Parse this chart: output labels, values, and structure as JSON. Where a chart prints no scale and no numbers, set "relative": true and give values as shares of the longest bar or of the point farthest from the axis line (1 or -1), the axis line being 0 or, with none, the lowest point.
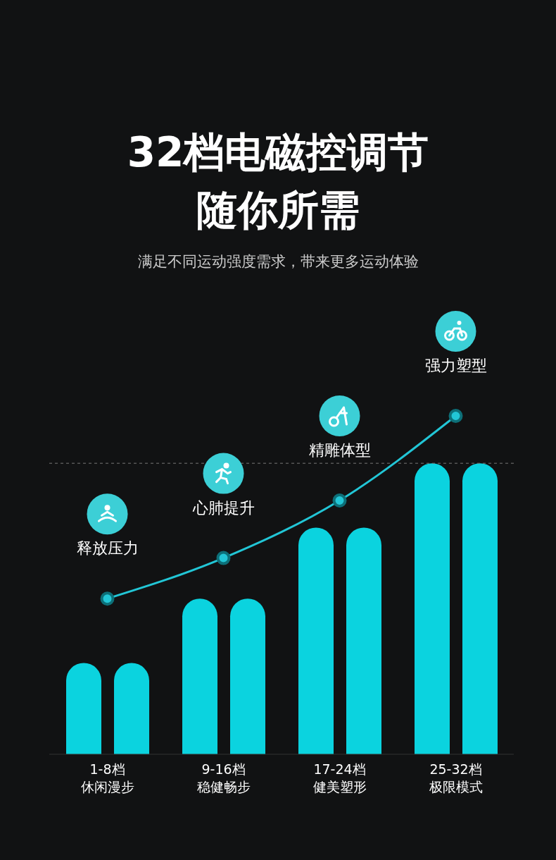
{
  "chart_data": {
    "type": "bar",
    "title": "32档电磁控调节随你所需",
    "subtitle": "满足不同运动强度需求，带来更多运动体验",
    "relative": true,
    "categories": [
      "1-8档休闲漫步",
      "9-16档稳健畅步",
      "17-24档健美塑形",
      "25-32档极限模式"
    ],
    "series": [
      {
        "color": "#0bd3df",
        "values": [
          0.27,
          0.46,
          0.67,
          0.86
        ]
      },
      {
        "color": "#0bd3df",
        "values": [
          0.27,
          0.46,
          0.67,
          0.86
        ]
      },
      {
        "type": "line",
        "color": "#22c6d6",
        "values": [
          0.46,
          0.58,
          0.75,
          1
        ],
        "marker": "circle"
      }
    ],
    "annotations": [
      {
        "text": "释放压力",
        "x": "1-8档休闲漫步",
        "y": 0.46
      },
      {
        "text": "心肺提升",
        "x": "9-16档稳健畅步",
        "y": 0.58
      },
      {
        "text": "精雕体型",
        "x": "17-24档健美塑形",
        "y": 0.75
      },
      {
        "text": "强力塑型",
        "x": "25-32档极限模式",
        "y": 1
      }
    ],
    "ref_lines": [
      {
        "axis": "y",
        "value": 0.86,
        "line_style": "dashed",
        "color": "#777777"
      }
    ]
  }
}
